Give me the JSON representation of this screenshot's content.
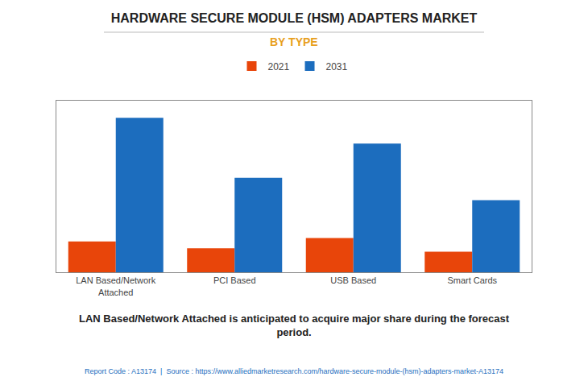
{
  "chart_data": {
    "type": "bar",
    "title": "HARDWARE SECURE MODULE (HSM) ADAPTERS MARKET",
    "subtitle": "BY TYPE",
    "categories": [
      "LAN Based/Network\nAttached",
      "PCI Based",
      "USB Based",
      "Smart Cards"
    ],
    "series": [
      {
        "name": "2021",
        "color": "#e8450a",
        "values": [
          18,
          14,
          20,
          12
        ]
      },
      {
        "name": "2031",
        "color": "#1c6dbe",
        "values": [
          90,
          55,
          75,
          42
        ]
      }
    ],
    "annotations": [
      "LAN Based/Network Attached is anticipated to acquire major share during the forecast\nperiod.",
      "Report Code : A13174  |  Source : https://www.alliedmarketresearch.com/hardware-secure-module-(hsm)-adapters-market-A13174"
    ],
    "ylim": [
      0,
      100
    ],
    "yticks": [],
    "grid": false,
    "legend": "top",
    "tick_labels": "x"
  }
}
